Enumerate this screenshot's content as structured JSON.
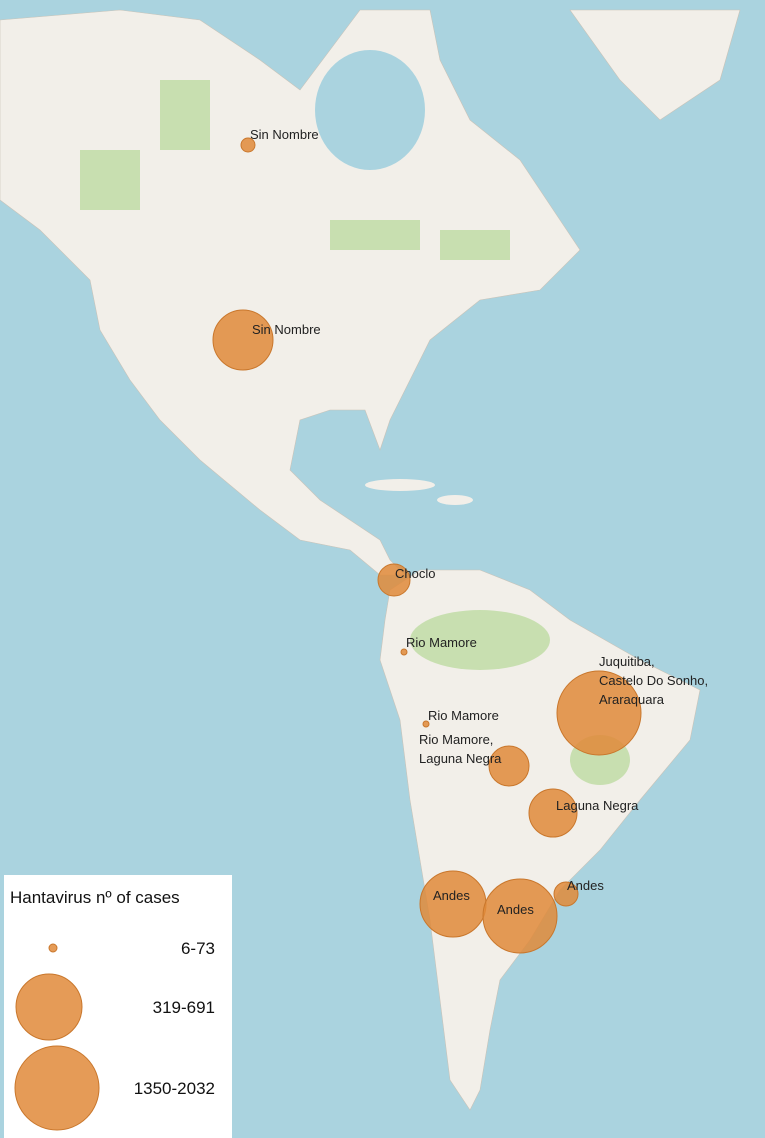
{
  "markers": [
    {
      "label": [
        "Sin Nombre"
      ]
    },
    {
      "label": [
        "Sin Nombre"
      ]
    },
    {
      "label": [
        "Choclo"
      ]
    },
    {
      "label": [
        "Rio Mamore"
      ]
    },
    {
      "label": [
        "Rio Mamore"
      ]
    },
    {
      "label": [
        "Rio Mamore,",
        "Laguna Negra"
      ]
    },
    {
      "label": [
        "Juquitiba,",
        "Castelo Do Sonho,",
        "Araraquara"
      ]
    },
    {
      "label": [
        "Laguna Negra"
      ]
    },
    {
      "label": [
        "Andes"
      ]
    },
    {
      "label": [
        "Andes"
      ]
    },
    {
      "label": [
        "Andes"
      ]
    }
  ],
  "legend": {
    "title": "Hantavirus nº of cases",
    "items": [
      "6-73",
      "319-691",
      "1350-2032"
    ]
  }
}
